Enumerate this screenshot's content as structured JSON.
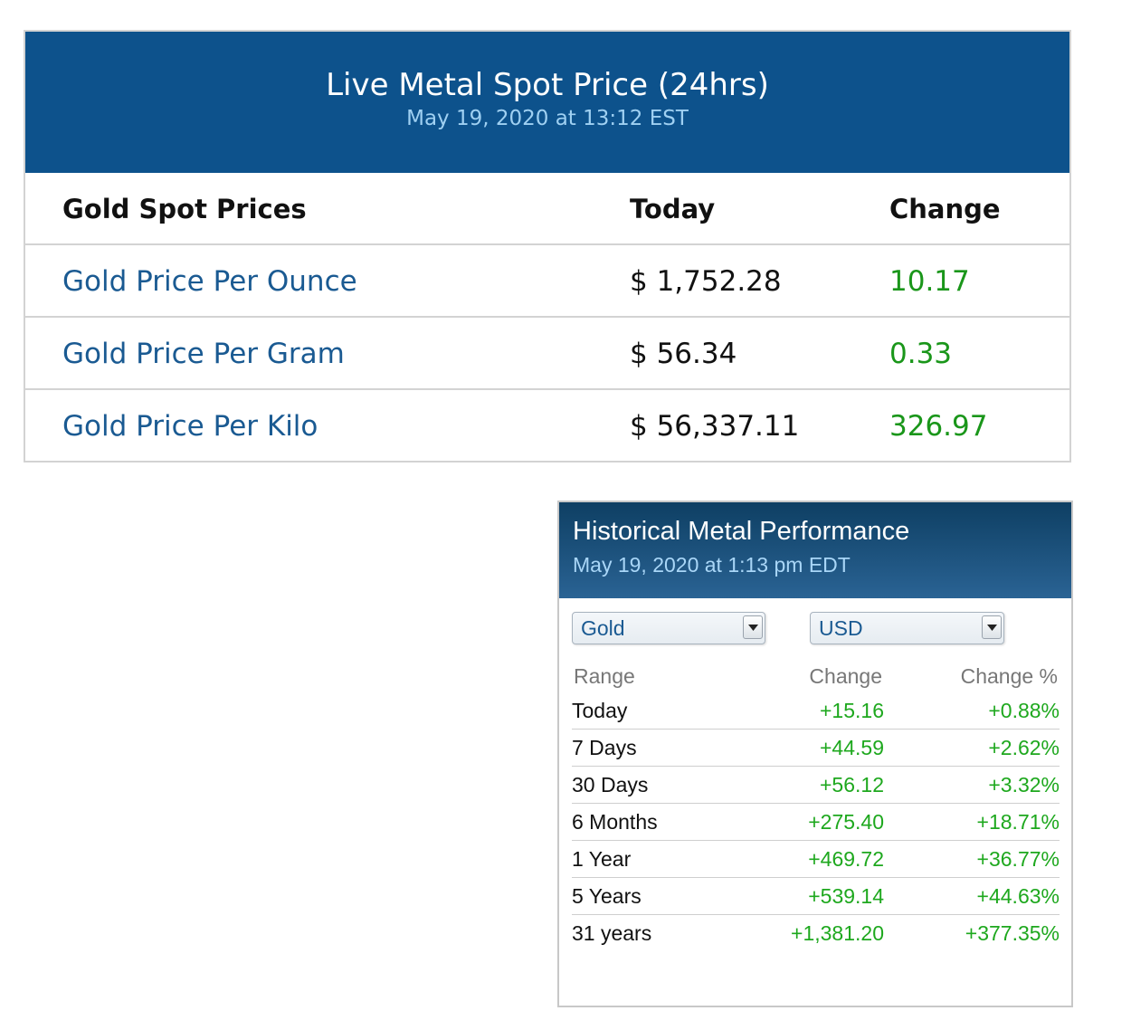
{
  "spot": {
    "title": "Live Metal Spot Price (24hrs)",
    "subtitle": "May 19, 2020 at 13:12 EST",
    "columns": [
      "Gold Spot Prices",
      "Today",
      "Change"
    ],
    "rows": [
      {
        "label": "Gold Price Per Ounce",
        "today": "$ 1,752.28",
        "change": "10.17"
      },
      {
        "label": "Gold Price Per Gram",
        "today": "$ 56.34",
        "change": "0.33"
      },
      {
        "label": "Gold Price Per Kilo",
        "today": "$ 56,337.11",
        "change": "326.97"
      }
    ],
    "colors": {
      "header_bg": "#0d528c",
      "link": "#1a5a92",
      "positive": "#1a961a"
    }
  },
  "historical": {
    "title": "Historical Metal Performance",
    "subtitle": "May 19, 2020 at 1:13 pm EDT",
    "metal_select": "Gold",
    "currency_select": "USD",
    "columns": [
      "Range",
      "Change",
      "Change %"
    ],
    "rows": [
      {
        "range": "Today",
        "change": "+15.16",
        "pct": "+0.88%"
      },
      {
        "range": "7 Days",
        "change": "+44.59",
        "pct": "+2.62%"
      },
      {
        "range": "30 Days",
        "change": "+56.12",
        "pct": "+3.32%"
      },
      {
        "range": "6 Months",
        "change": "+275.40",
        "pct": "+18.71%"
      },
      {
        "range": "1 Year",
        "change": "+469.72",
        "pct": "+36.77%"
      },
      {
        "range": "5 Years",
        "change": "+539.14",
        "pct": "+44.63%"
      },
      {
        "range": "31 years",
        "change": "+1,381.20",
        "pct": "+377.35%"
      }
    ],
    "icons": {
      "dropdown": "chevron-down-icon"
    },
    "colors": {
      "positive": "#1ea81e",
      "header_gradient_top": "#0e3f63",
      "header_gradient_bottom": "#2a6394"
    }
  }
}
